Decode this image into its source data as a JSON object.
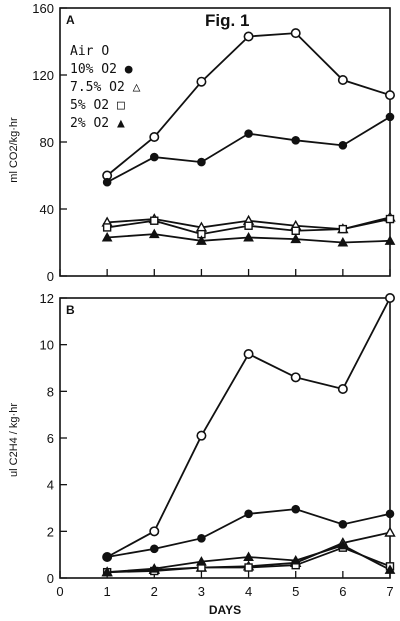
{
  "figure_title": "Fig. 1",
  "x_axis": {
    "label": "DAYS",
    "ticks": [
      "0",
      "1",
      "2",
      "3",
      "4",
      "5",
      "6",
      "7"
    ]
  },
  "legend": [
    {
      "label": "Air",
      "symbol": "O"
    },
    {
      "label": "10% O2",
      "symbol": "●"
    },
    {
      "label": "7.5% O2",
      "symbol": "△"
    },
    {
      "label": "5% O2",
      "symbol": "□"
    },
    {
      "label": "2% O2",
      "symbol": "▲"
    }
  ],
  "chart_data": [
    {
      "type": "line",
      "panel": "A",
      "ylabel": "ml CO2/kg·hr",
      "ylim": [
        0,
        160
      ],
      "yticks": [
        "0",
        "40",
        "80",
        "120",
        "160"
      ],
      "x": [
        1,
        2,
        3,
        4,
        5,
        6,
        7
      ],
      "xlim": [
        0,
        7
      ],
      "series": [
        {
          "name": "Air",
          "marker": "open-circle",
          "values": [
            60,
            83,
            116,
            143,
            145,
            117,
            108
          ]
        },
        {
          "name": "10% O2",
          "marker": "filled-circle",
          "values": [
            56,
            71,
            68,
            85,
            81,
            78,
            95
          ]
        },
        {
          "name": "7.5% O2",
          "marker": "open-triangle",
          "values": [
            32,
            34,
            29,
            33,
            30,
            28,
            35
          ]
        },
        {
          "name": "5% O2",
          "marker": "open-square",
          "values": [
            29,
            33,
            25,
            30,
            27,
            28,
            34
          ]
        },
        {
          "name": "2% O2",
          "marker": "filled-triangle",
          "values": [
            23,
            25,
            21,
            23,
            22,
            20,
            21
          ]
        }
      ]
    },
    {
      "type": "line",
      "panel": "B",
      "ylabel": "ul C2H4 / kg·hr",
      "ylim": [
        0,
        12
      ],
      "yticks": [
        "0",
        "2",
        "4",
        "6",
        "8",
        "10",
        "12"
      ],
      "x": [
        1,
        2,
        3,
        4,
        5,
        6,
        7
      ],
      "xlim": [
        0,
        7
      ],
      "series": [
        {
          "name": "Air",
          "marker": "open-circle",
          "values": [
            0.9,
            2.0,
            6.1,
            9.6,
            8.6,
            8.1,
            12.0
          ]
        },
        {
          "name": "10% O2",
          "marker": "filled-circle",
          "values": [
            0.9,
            1.25,
            1.7,
            2.75,
            2.95,
            2.3,
            2.75
          ]
        },
        {
          "name": "7.5% O2",
          "marker": "open-triangle",
          "values": [
            0.25,
            0.35,
            0.45,
            0.5,
            0.65,
            1.5,
            1.95
          ]
        },
        {
          "name": "5% O2",
          "marker": "open-square",
          "values": [
            0.25,
            0.3,
            0.45,
            0.45,
            0.55,
            1.3,
            0.5
          ]
        },
        {
          "name": "2% O2",
          "marker": "filled-triangle",
          "values": [
            0.25,
            0.4,
            0.7,
            0.9,
            0.75,
            1.4,
            0.35
          ]
        }
      ]
    }
  ]
}
